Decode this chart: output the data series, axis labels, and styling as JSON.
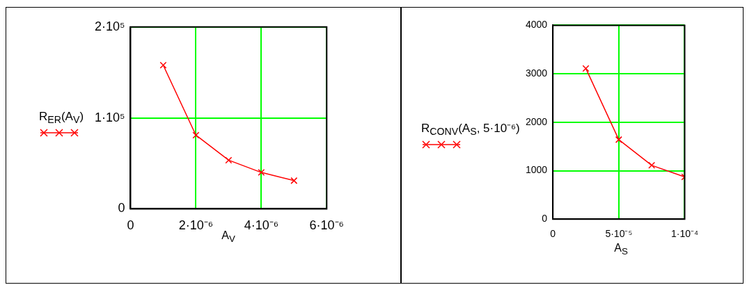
{
  "chart_data": [
    {
      "type": "line",
      "xlabel": "A$_{V}$",
      "x": [
        1e-06,
        2e-06,
        3e-06,
        4e-06,
        5e-06
      ],
      "xlim": [
        0,
        6e-06
      ],
      "xticks": [
        0,
        {
          "value": 2e-06,
          "label": "2·10⁻⁶"
        },
        {
          "value": 4e-06,
          "label": "4·10⁻⁶"
        },
        {
          "value": 6e-06,
          "label": "6·10⁻⁶"
        }
      ],
      "ylim": [
        0,
        200000
      ],
      "yticks": [
        0,
        {
          "value": 100000,
          "label": "1·10⁵"
        },
        {
          "value": 200000,
          "label": "2·10⁵"
        }
      ],
      "grid": true,
      "legend": "left",
      "marker": "cross",
      "series": [
        {
          "name": "R$_{ER}$(A$_{V}$)",
          "color": "#ff0000",
          "values": [
            158000,
            81000,
            53500,
            40000,
            31000
          ]
        }
      ]
    },
    {
      "type": "line",
      "xlabel": "A$_{S}$",
      "x": [
        2.5e-05,
        5e-05,
        7.5e-05,
        0.0001
      ],
      "xlim": [
        0,
        0.0001
      ],
      "xticks": [
        0,
        {
          "value": 5e-05,
          "label": "5·10⁻⁵"
        },
        {
          "value": 0.0001,
          "label": "1·10⁻⁴"
        }
      ],
      "ylim": [
        0,
        4000
      ],
      "yticks": [
        0,
        1000,
        2000,
        3000,
        4000
      ],
      "grid": true,
      "legend": "left",
      "marker": "cross",
      "series": [
        {
          "name": "R$_{CONV}$(A$_{S}$, 5·10⁻⁶)",
          "color": "#ff0000",
          "values": [
            3110,
            1640,
            1110,
            870
          ]
        }
      ]
    }
  ]
}
